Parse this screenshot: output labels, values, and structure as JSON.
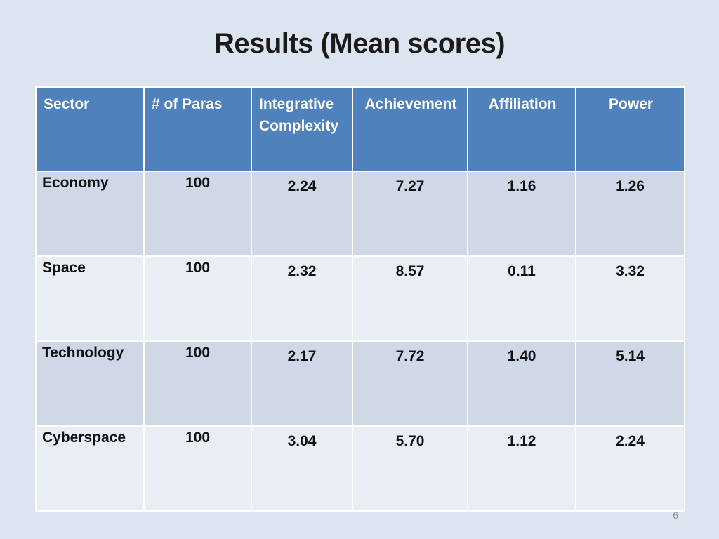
{
  "slide": {
    "title": "Results (Mean scores)",
    "page_number": "6"
  },
  "table": {
    "headers": [
      "Sector",
      "# of Paras",
      "Integrative Complexity",
      "Achievement",
      "Affiliation",
      "Power"
    ],
    "rows": [
      [
        "Economy",
        "100",
        "2.24",
        "7.27",
        "1.16",
        "1.26"
      ],
      [
        "Space",
        "100",
        "2.32",
        "8.57",
        "0.11",
        "3.32"
      ],
      [
        "Technology",
        "100",
        "2.17",
        "7.72",
        "1.40",
        "5.14"
      ],
      [
        "Cyberspace",
        "100",
        "3.04",
        "5.70",
        "1.12",
        "2.24"
      ]
    ]
  },
  "colors": {
    "header_bg": "#4f81bd",
    "row_dark_bg": "#d0d8e8",
    "row_light_bg": "#e9edf4",
    "slide_bg": "#dce5ef"
  }
}
